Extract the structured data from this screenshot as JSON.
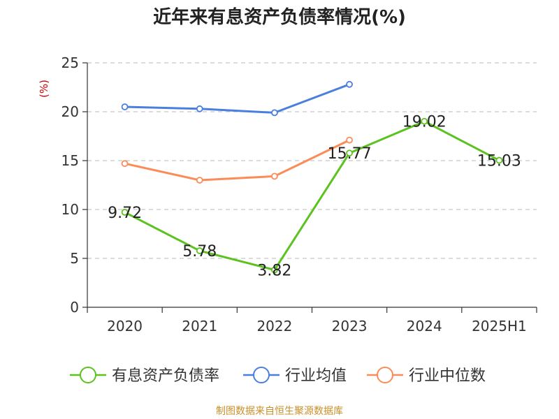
{
  "title": "近年来有息资产负债率情况(%)",
  "source": "制图数据来自恒生聚源数据库",
  "colors": {
    "series1": "#5cc21f",
    "series2": "#4a7fe0",
    "series3": "#fb8c57",
    "grid": "#c8c8c8",
    "axis": "#333333",
    "unit": "#cc0000"
  },
  "chart_data": {
    "type": "line",
    "title": "近年来有息资产负债率情况(%)",
    "ylabel": "(%)",
    "xlabel": "",
    "categories": [
      "2020",
      "2021",
      "2022",
      "2023",
      "2024",
      "2025H1"
    ],
    "ylim": [
      0,
      25
    ],
    "yticks": [
      "0",
      "5",
      "10",
      "15",
      "20",
      "25"
    ],
    "grid": "horizontal dashed",
    "legend_position": "bottom",
    "series": [
      {
        "name": "有息资产负债率",
        "values": [
          9.72,
          5.78,
          3.82,
          15.77,
          19.02,
          15.03
        ],
        "labels": [
          "9.72",
          "5.78",
          "3.82",
          "15.77",
          "19.02",
          "15.03"
        ]
      },
      {
        "name": "行业均值",
        "values": [
          20.5,
          20.3,
          19.9,
          22.8,
          null,
          null
        ]
      },
      {
        "name": "行业中位数",
        "values": [
          14.7,
          13.0,
          13.4,
          17.1,
          null,
          null
        ]
      }
    ]
  }
}
